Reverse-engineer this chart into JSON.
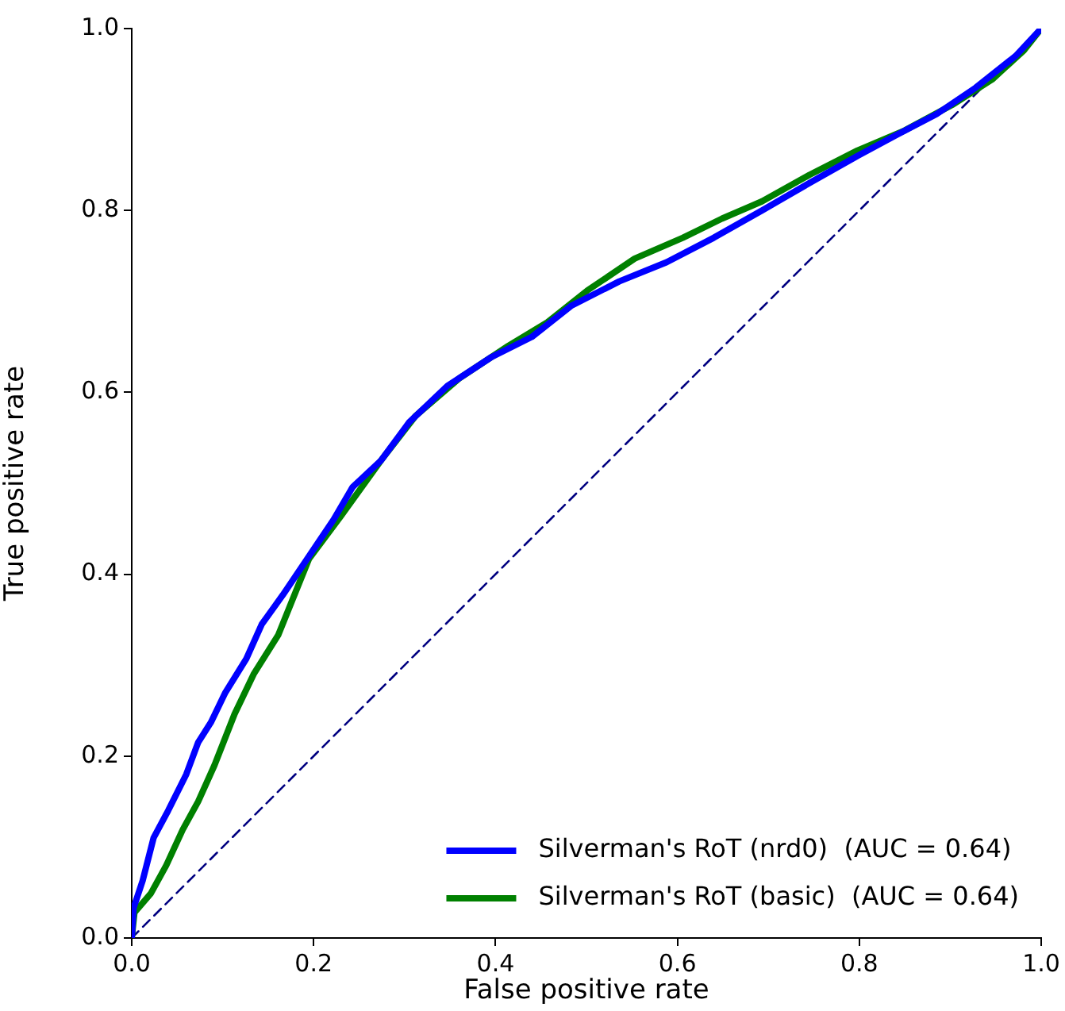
{
  "chart_data": {
    "type": "line",
    "xlabel": "False positive rate",
    "ylabel": "True positive rate",
    "xlim": [
      0,
      1
    ],
    "ylim": [
      0,
      1
    ],
    "xticks": [
      {
        "value": 0,
        "label": "0.0"
      },
      0.2,
      0.4,
      0.6,
      0.8,
      {
        "value": 1,
        "label": "1.0"
      }
    ],
    "yticks": [
      {
        "value": 0,
        "label": "0.0"
      },
      0.2,
      0.4,
      0.6,
      0.8,
      {
        "value": 1,
        "label": "1.0"
      }
    ],
    "grid": false,
    "legend": "bottom right",
    "marker": "none",
    "series": [
      {
        "name": "Silverman's RoT (nrd0)  (AUC = 0.64)",
        "color": "#0000ff",
        "x": [
          0,
          0.002,
          0.012,
          0.024,
          0.04,
          0.06,
          0.073,
          0.087,
          0.103,
          0.126,
          0.143,
          0.166,
          0.195,
          0.222,
          0.243,
          0.274,
          0.305,
          0.347,
          0.396,
          0.44,
          0.483,
          0.536,
          0.588,
          0.64,
          0.693,
          0.745,
          0.798,
          0.841,
          0.885,
          0.928,
          0.972,
          1
        ],
        "values": [
          0,
          0.033,
          0.063,
          0.11,
          0.14,
          0.18,
          0.215,
          0.237,
          0.27,
          0.307,
          0.345,
          0.377,
          0.42,
          0.46,
          0.496,
          0.525,
          0.567,
          0.607,
          0.639,
          0.661,
          0.695,
          0.722,
          0.743,
          0.77,
          0.8,
          0.83,
          0.86,
          0.883,
          0.906,
          0.935,
          0.97,
          1
        ]
      },
      {
        "name": "Silverman's RoT (basic)  (AUC = 0.64)",
        "color": "#008000",
        "x": [
          0,
          0.003,
          0.021,
          0.038,
          0.056,
          0.073,
          0.091,
          0.113,
          0.134,
          0.161,
          0.195,
          0.23,
          0.274,
          0.312,
          0.361,
          0.414,
          0.457,
          0.501,
          0.553,
          0.606,
          0.649,
          0.693,
          0.745,
          0.798,
          0.85,
          0.902,
          0.946,
          0.981,
          1
        ],
        "values": [
          0,
          0.028,
          0.049,
          0.08,
          0.119,
          0.15,
          0.19,
          0.246,
          0.29,
          0.333,
          0.417,
          0.464,
          0.525,
          0.574,
          0.616,
          0.651,
          0.677,
          0.712,
          0.747,
          0.77,
          0.791,
          0.81,
          0.839,
          0.866,
          0.888,
          0.916,
          0.944,
          0.976,
          1
        ]
      },
      {
        "color": "#000080",
        "line_style": "dashed",
        "x": [
          0,
          1
        ],
        "values": [
          0,
          1
        ]
      }
    ]
  }
}
